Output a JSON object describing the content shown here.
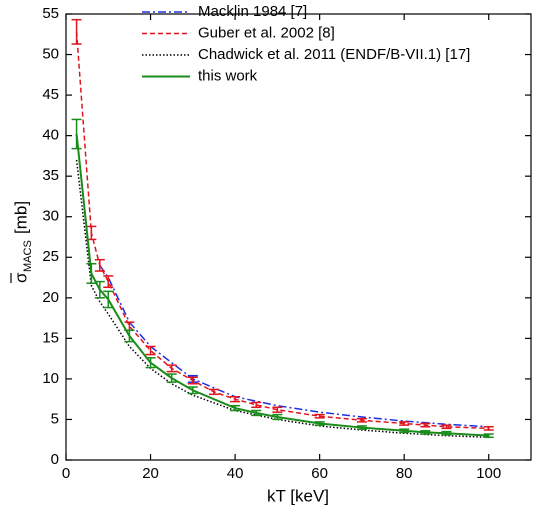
{
  "chart_data": {
    "type": "line",
    "x_label": "kT [keV]",
    "y_label_symbol": "σ",
    "y_label_subscript": "MACS",
    "y_label_unit": "[mb]",
    "xlim": [
      0,
      110
    ],
    "ylim": [
      0,
      55
    ],
    "xticks": [
      0,
      20,
      40,
      60,
      80,
      100
    ],
    "yticks": [
      0,
      5,
      10,
      15,
      20,
      25,
      30,
      35,
      40,
      45,
      50,
      55
    ],
    "legend": "upper center",
    "series": [
      {
        "name": "Macklin 1984 [7]",
        "color": "#1f2fe0",
        "dash": "dashdot",
        "x": [
          8,
          10,
          15,
          20,
          25,
          30,
          40,
          50,
          60,
          70,
          80,
          90,
          100
        ],
        "values": [
          24,
          22.5,
          17,
          14,
          12,
          10,
          7.8,
          6.7,
          5.9,
          5.3,
          4.8,
          4.4,
          4.1
        ],
        "errors": [
          null,
          null,
          null,
          null,
          null,
          0.4,
          null,
          null,
          null,
          null,
          null,
          null,
          null
        ]
      },
      {
        "name": "Guber et al. 2002 [8]",
        "color": "#e0141e",
        "dash": "dashed",
        "x": [
          2.5,
          6,
          8,
          10,
          15,
          20,
          25,
          30,
          35,
          40,
          45,
          50,
          60,
          70,
          80,
          85,
          90,
          100
        ],
        "values": [
          52.8,
          28,
          24,
          22,
          16.5,
          13.5,
          11.3,
          9.8,
          8.4,
          7.5,
          6.8,
          6.2,
          5.4,
          4.9,
          4.5,
          4.3,
          4.1,
          3.9
        ],
        "errors": [
          1.5,
          0.8,
          0.7,
          0.7,
          0.5,
          0.5,
          0.4,
          0.4,
          0.3,
          0.3,
          0.3,
          0.3,
          0.2,
          0.2,
          0.2,
          0.2,
          0.2,
          0.2
        ]
      },
      {
        "name": "Chadwick et al. 2011 (ENDF/B-VII.1) [17]",
        "color": "#000000",
        "dash": "dotted",
        "x": [
          2.5,
          6,
          8,
          10,
          15,
          20,
          25,
          30,
          40,
          50,
          60,
          70,
          80,
          90,
          100
        ],
        "values": [
          37,
          21.5,
          19.5,
          18,
          14,
          11.3,
          9.4,
          8,
          6.1,
          5,
          4.2,
          3.7,
          3.3,
          3,
          2.8
        ]
      },
      {
        "name": "this work",
        "color": "#1a8c1a",
        "dash": "solid",
        "x": [
          2.5,
          6,
          8,
          10,
          15,
          20,
          25,
          30,
          40,
          45,
          50,
          60,
          70,
          80,
          85,
          90,
          100
        ],
        "values": [
          40.2,
          23,
          21,
          19.8,
          15.3,
          12,
          10.1,
          8.6,
          6.4,
          5.8,
          5.3,
          4.5,
          4,
          3.6,
          3.4,
          3.3,
          3
        ],
        "errors": [
          1.8,
          1.2,
          1,
          1,
          0.7,
          0.6,
          0.5,
          0.4,
          0.3,
          0.3,
          0.3,
          0.2,
          0.2,
          0.2,
          0.2,
          0.2,
          0.2
        ]
      }
    ]
  }
}
